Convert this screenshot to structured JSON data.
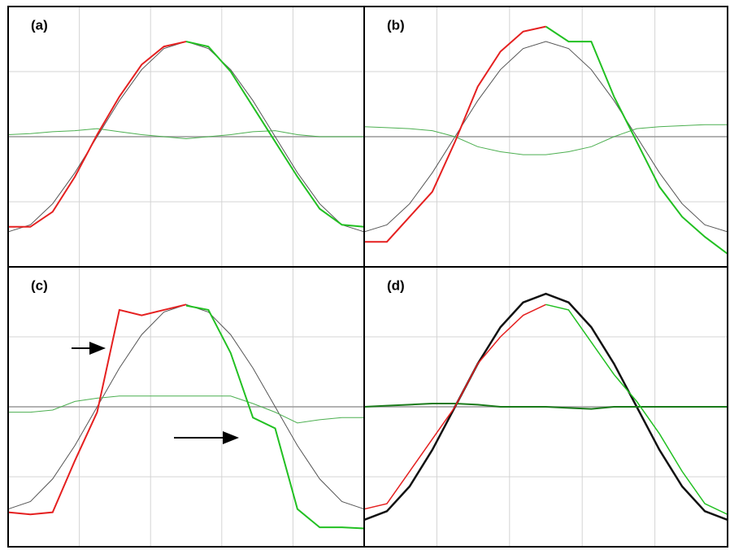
{
  "chart_data": [
    {
      "type": "line",
      "label": "(a)",
      "x": [
        0,
        1,
        2,
        3,
        4,
        5,
        6,
        7,
        8,
        9,
        10,
        11,
        12,
        13,
        14,
        15,
        16
      ],
      "xlim": [
        0,
        16
      ],
      "ylim": [
        -1.3,
        1.3
      ],
      "series": [
        {
          "color": "#555555",
          "width": 1,
          "values": [
            -0.95,
            -0.88,
            -0.67,
            -0.36,
            0,
            0.36,
            0.67,
            0.88,
            0.95,
            0.88,
            0.67,
            0.36,
            0,
            -0.36,
            -0.67,
            -0.88,
            -0.95
          ]
        },
        {
          "color": "#4caf50",
          "width": 1,
          "values": [
            0.02,
            0.03,
            0.05,
            0.06,
            0.08,
            0.05,
            0.02,
            0,
            -0.02,
            0,
            0.02,
            0.05,
            0.06,
            0.02,
            0,
            0,
            0
          ]
        },
        {
          "color": "#e52020",
          "width": 2,
          "values": [
            -0.9,
            -0.9,
            -0.75,
            -0.4,
            0.02,
            0.4,
            0.72,
            0.9,
            0.95,
            null,
            null,
            null,
            null,
            null,
            null,
            null,
            null
          ]
        },
        {
          "color": "#22c022",
          "width": 2,
          "values": [
            null,
            null,
            null,
            null,
            null,
            null,
            null,
            null,
            0.95,
            0.9,
            0.65,
            0.3,
            -0.05,
            -0.4,
            -0.72,
            -0.88,
            -0.9
          ]
        }
      ]
    },
    {
      "type": "line",
      "label": "(b)",
      "x": [
        0,
        1,
        2,
        3,
        4,
        5,
        6,
        7,
        8,
        9,
        10,
        11,
        12,
        13,
        14,
        15,
        16
      ],
      "xlim": [
        0,
        16
      ],
      "ylim": [
        -1.3,
        1.3
      ],
      "series": [
        {
          "color": "#555555",
          "width": 1,
          "values": [
            -0.95,
            -0.88,
            -0.67,
            -0.36,
            0,
            0.36,
            0.67,
            0.88,
            0.95,
            0.88,
            0.67,
            0.36,
            0,
            -0.36,
            -0.67,
            -0.88,
            -0.95
          ]
        },
        {
          "color": "#4caf50",
          "width": 1,
          "values": [
            0.1,
            0.09,
            0.08,
            0.06,
            0,
            -0.1,
            -0.15,
            -0.18,
            -0.18,
            -0.15,
            -0.1,
            0,
            0.08,
            0.1,
            0.11,
            0.12,
            0.12
          ]
        },
        {
          "color": "#e52020",
          "width": 2,
          "values": [
            -1.05,
            -1.05,
            -0.8,
            -0.55,
            -0.05,
            0.5,
            0.85,
            1.05,
            1.1,
            null,
            null,
            null,
            null,
            null,
            null,
            null,
            null
          ]
        },
        {
          "color": "#22c022",
          "width": 2,
          "values": [
            null,
            null,
            null,
            null,
            null,
            null,
            null,
            null,
            1.1,
            0.95,
            0.95,
            0.4,
            -0.05,
            -0.5,
            -0.8,
            -1.0,
            -1.17
          ]
        }
      ]
    },
    {
      "type": "line",
      "label": "(c)",
      "x": [
        0,
        1,
        2,
        3,
        4,
        5,
        6,
        7,
        8,
        9,
        10,
        11,
        12,
        13,
        14,
        15,
        16
      ],
      "xlim": [
        0,
        16
      ],
      "ylim": [
        -1.3,
        1.3
      ],
      "series": [
        {
          "color": "#555555",
          "width": 1,
          "values": [
            -0.95,
            -0.88,
            -0.67,
            -0.36,
            0,
            0.36,
            0.67,
            0.88,
            0.95,
            0.88,
            0.67,
            0.36,
            0,
            -0.36,
            -0.67,
            -0.88,
            -0.95
          ]
        },
        {
          "color": "#4caf50",
          "width": 1,
          "values": [
            -0.05,
            -0.05,
            -0.03,
            0.05,
            0.08,
            0.1,
            0.1,
            0.1,
            0.1,
            0.1,
            0.1,
            0.03,
            -0.05,
            -0.15,
            -0.12,
            -0.1,
            -0.1
          ]
        },
        {
          "color": "#e52020",
          "width": 2,
          "values": [
            -0.98,
            -1.0,
            -0.98,
            -0.5,
            -0.05,
            0.9,
            0.85,
            0.9,
            0.95,
            null,
            null,
            null,
            null,
            null,
            null,
            null,
            null
          ]
        },
        {
          "color": "#22c022",
          "width": 2,
          "values": [
            null,
            null,
            null,
            null,
            null,
            null,
            null,
            null,
            0.94,
            0.9,
            0.5,
            -0.1,
            -0.2,
            -0.95,
            -1.12,
            -1.12,
            -1.13
          ]
        }
      ]
    },
    {
      "type": "line",
      "label": "(d)",
      "x": [
        0,
        1,
        2,
        3,
        4,
        5,
        6,
        7,
        8,
        9,
        10,
        11,
        12,
        13,
        14,
        15,
        16
      ],
      "xlim": [
        0,
        16
      ],
      "ylim": [
        -1.3,
        1.3
      ],
      "series": [
        {
          "color": "#111111",
          "width": 2.5,
          "values": [
            -1.05,
            -0.97,
            -0.74,
            -0.4,
            0,
            0.4,
            0.74,
            0.97,
            1.05,
            0.97,
            0.74,
            0.4,
            0,
            -0.4,
            -0.74,
            -0.97,
            -1.05
          ]
        },
        {
          "color": "#1a7a1a",
          "width": 2,
          "values": [
            0,
            0.01,
            0.02,
            0.03,
            0.03,
            0.02,
            0,
            0,
            0,
            -0.01,
            -0.02,
            0,
            0,
            0,
            0,
            0,
            0
          ]
        },
        {
          "color": "#e52020",
          "width": 1.5,
          "values": [
            -0.95,
            -0.9,
            -0.6,
            -0.3,
            0,
            0.4,
            0.65,
            0.85,
            0.95,
            null,
            null,
            null,
            null,
            null,
            null,
            null,
            null
          ]
        },
        {
          "color": "#22c022",
          "width": 1.5,
          "values": [
            null,
            null,
            null,
            null,
            null,
            null,
            null,
            null,
            0.95,
            0.9,
            0.6,
            0.3,
            0.05,
            -0.25,
            -0.6,
            -0.9,
            -1.0
          ]
        }
      ]
    }
  ]
}
